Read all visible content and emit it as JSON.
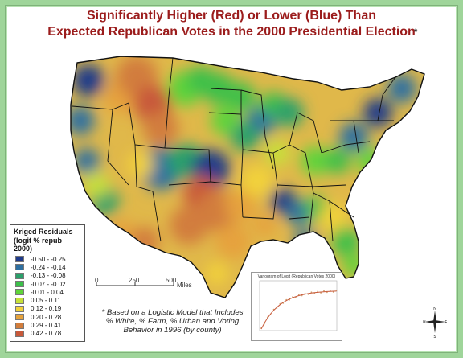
{
  "title": {
    "line1": "Significantly Higher (Red) or Lower (Blue) Than",
    "line2": "Expected Republican Votes in the 2000 Presidential Election",
    "asterisk": "*"
  },
  "legend": {
    "title": "Kriged Residuals",
    "subtitle": "(logit % repub 2000)",
    "items": [
      {
        "label": "-0.50 - -0.25",
        "color": "#1f3a8a"
      },
      {
        "label": "-0.24 - -0.14",
        "color": "#2e6fa0"
      },
      {
        "label": "-0.13 - -0.08",
        "color": "#2aa06a"
      },
      {
        "label": "-0.07 - -0.02",
        "color": "#3cc04a"
      },
      {
        "label": "-0.01 - 0.04",
        "color": "#5fd43a"
      },
      {
        "label": "0.05 - 0.11",
        "color": "#c6e03a"
      },
      {
        "label": "0.12 - 0.19",
        "color": "#f2d23a"
      },
      {
        "label": "0.20 - 0.28",
        "color": "#e6a23c"
      },
      {
        "label": "0.29 - 0.41",
        "color": "#d27d3c"
      },
      {
        "label": "0.42 - 0.78",
        "color": "#c8593a"
      }
    ]
  },
  "scale": {
    "labels": [
      "0",
      "250",
      "500"
    ],
    "unit": "Miles"
  },
  "note": {
    "lines": [
      "* Based on a Logistic Model that Includes",
      "% White, % Farm, % Urban and Voting",
      "Behavior in 1996 (by county)"
    ]
  },
  "variogram": {
    "title": "Variogram of Logit (Republican Votes 2000)"
  },
  "compass": {
    "n": "N",
    "s": "S",
    "e": "E",
    "w": "W"
  },
  "map": {
    "base_color": "#e0b84a",
    "land_colors": [
      "#c8593a",
      "#d27d3c",
      "#e6a23c",
      "#f2d23a",
      "#c6e03a",
      "#5fd43a",
      "#3cc04a",
      "#2aa06a",
      "#2e6fa0",
      "#1f3a8a"
    ]
  }
}
